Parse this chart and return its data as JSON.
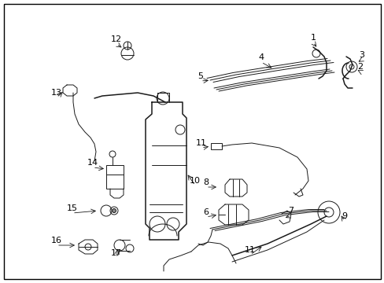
{
  "background_color": "#ffffff",
  "border_color": "#000000",
  "fig_width": 4.89,
  "fig_height": 3.6,
  "dpi": 100,
  "line_color": "#1a1a1a",
  "label_fontsize": 8,
  "label_color": "#000000"
}
